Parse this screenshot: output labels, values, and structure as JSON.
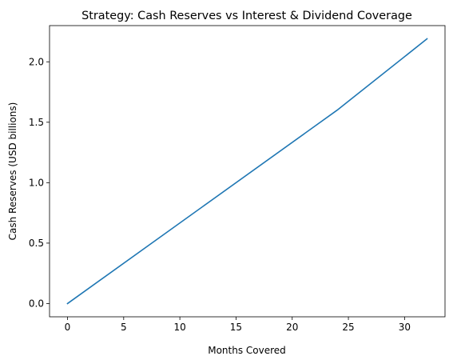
{
  "chart_data": {
    "type": "line",
    "title": "Strategy: Cash Reserves vs Interest & Dividend Coverage",
    "xlabel": "Months Covered",
    "ylabel": "Cash Reserves (USD billions)",
    "xlim": [
      -1.6,
      33.6
    ],
    "ylim": [
      -0.1095,
      2.2995
    ],
    "xticks": [
      0,
      5,
      10,
      15,
      20,
      25,
      30
    ],
    "xtick_labels": [
      "0",
      "5",
      "10",
      "15",
      "20",
      "25",
      "30"
    ],
    "yticks": [
      0.0,
      0.5,
      1.0,
      1.5,
      2.0
    ],
    "ytick_labels": [
      "0.0",
      "0.5",
      "1.0",
      "1.5",
      "2.0"
    ],
    "grid": false,
    "legend": "none",
    "series": [
      {
        "color": "#1f77b4",
        "x": [
          0,
          24,
          32
        ],
        "y": [
          0.0,
          1.6,
          2.19
        ]
      }
    ]
  }
}
